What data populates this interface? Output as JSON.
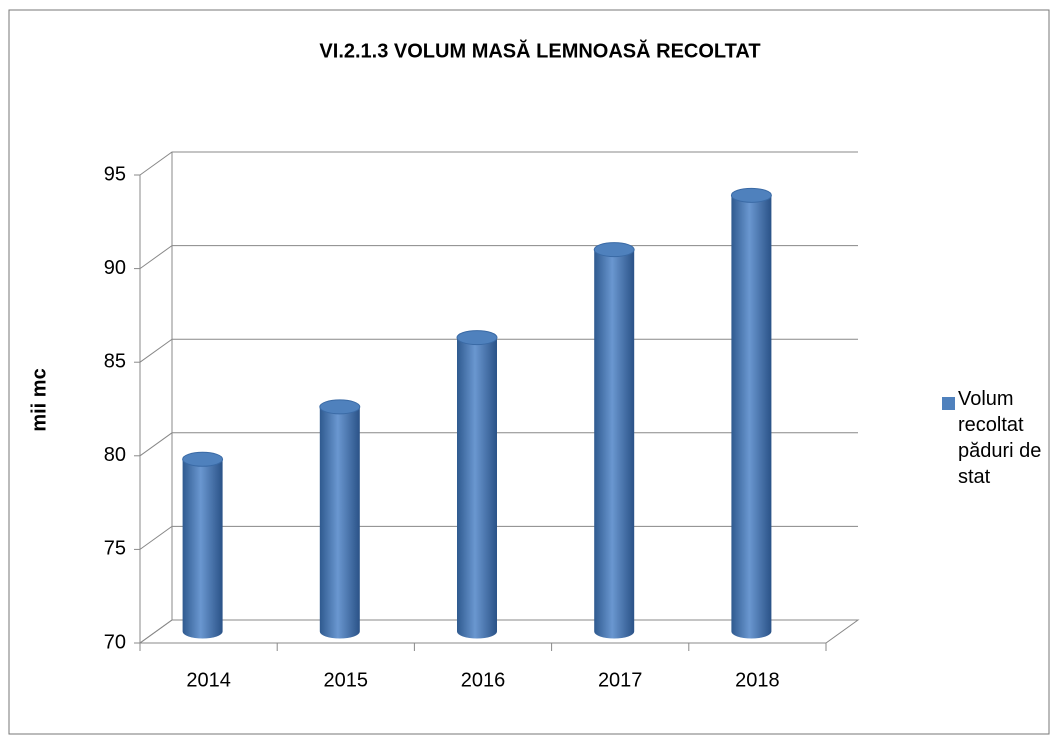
{
  "chart_data": {
    "type": "bar",
    "title": "VI.2.1.3 VOLUM MASĂ LEMNOASĂ RECOLTAT",
    "y_label": "mii mc",
    "categories": [
      "2014",
      "2015",
      "2016",
      "2017",
      "2018"
    ],
    "series": [
      {
        "name": "Volum recoltat păduri de stat",
        "color": "#4f81bd",
        "values": [
          79.2,
          82.0,
          85.7,
          90.4,
          93.3
        ]
      }
    ],
    "ylim": [
      70,
      95
    ],
    "yticks": [
      70,
      75,
      80,
      85,
      90,
      95
    ],
    "grid": true,
    "legend": "right"
  }
}
